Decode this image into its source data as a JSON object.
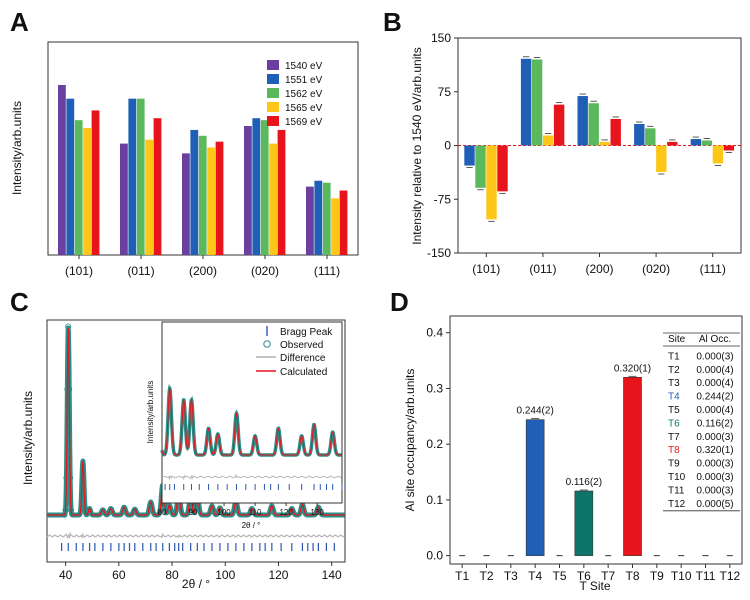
{
  "chart_data": [
    {
      "panel": "A",
      "type": "bar",
      "ylabel": "Intensity/arb.units",
      "categories": [
        "(101)",
        "(011)",
        "(200)",
        "(020)",
        "(111)"
      ],
      "series": [
        {
          "name": "1540 eV",
          "color": "#6b3fa0",
          "values": [
            78,
            48,
            43,
            57,
            26
          ]
        },
        {
          "name": "1551 eV",
          "color": "#1f5fb5",
          "values": [
            71,
            71,
            55,
            61,
            29
          ]
        },
        {
          "name": "1562 eV",
          "color": "#5cb85c",
          "values": [
            60,
            71,
            52,
            60,
            28
          ]
        },
        {
          "name": "1565 eV",
          "color": "#ffc61a",
          "values": [
            56,
            50,
            46,
            48,
            20
          ]
        },
        {
          "name": "1569 eV",
          "color": "#e8141c",
          "values": [
            65,
            61,
            49,
            55,
            24
          ]
        }
      ],
      "ylim": [
        -9,
        100
      ]
    },
    {
      "panel": "B",
      "type": "bar",
      "ylabel": "Intensity relative to 1540 eV/arb.units",
      "categories": [
        "(101)",
        "(011)",
        "(200)",
        "(020)",
        "(111)"
      ],
      "yticks": [
        -150,
        -75,
        0,
        75,
        150
      ],
      "ylim": [
        -150,
        150
      ],
      "series": [
        {
          "name": "1551 eV",
          "color": "#1f5fb5",
          "values": [
            -28,
            121,
            69,
            30,
            9
          ]
        },
        {
          "name": "1562 eV",
          "color": "#5cb85c",
          "values": [
            -59,
            120,
            59,
            24,
            7
          ]
        },
        {
          "name": "1565 eV",
          "color": "#ffc61a",
          "values": [
            -103,
            14,
            5,
            -37,
            -25
          ]
        },
        {
          "name": "1569 eV",
          "color": "#e8141c",
          "values": [
            -64,
            57,
            37,
            5,
            -7
          ]
        }
      ]
    },
    {
      "panel": "C",
      "type": "line",
      "xlabel": "2θ / °",
      "ylabel": "Intensity/arb.units",
      "xticks": [
        40,
        60,
        80,
        100,
        120,
        140
      ],
      "xlim": [
        33,
        145
      ],
      "legend": [
        "Bragg Peak",
        "Observed",
        "Difference",
        "Calculated"
      ],
      "peaks": [
        {
          "x": 41,
          "h": 290
        },
        {
          "x": 46.5,
          "h": 83
        },
        {
          "x": 49,
          "h": 10
        },
        {
          "x": 54,
          "h": 8
        },
        {
          "x": 57,
          "h": 10
        },
        {
          "x": 62,
          "h": 12
        },
        {
          "x": 66,
          "h": 9
        },
        {
          "x": 72,
          "h": 20
        },
        {
          "x": 76.5,
          "h": 46
        },
        {
          "x": 79,
          "h": 15
        },
        {
          "x": 82.5,
          "h": 35
        },
        {
          "x": 87,
          "h": 29
        },
        {
          "x": 89.5,
          "h": 29
        },
        {
          "x": 95,
          "h": 14
        },
        {
          "x": 98,
          "h": 11
        },
        {
          "x": 104,
          "h": 22
        },
        {
          "x": 110,
          "h": 10
        },
        {
          "x": 117.5,
          "h": 14
        },
        {
          "x": 125,
          "h": 10
        },
        {
          "x": 129,
          "h": 16
        },
        {
          "x": 135,
          "h": 12
        }
      ],
      "bragg": [
        38.5,
        41,
        44,
        46.5,
        49,
        51,
        54,
        57,
        60,
        62,
        64,
        66,
        69,
        72,
        74,
        76.5,
        79,
        81,
        82.5,
        84,
        87,
        89.5,
        92,
        95,
        98,
        101,
        104,
        107,
        110,
        113,
        115,
        117.5,
        121,
        125,
        129,
        131,
        133,
        135,
        138,
        141
      ],
      "inset": {
        "xlabel": "2θ / °",
        "ylabel": "Intensity/arb.units",
        "xticks": [
          80,
          90,
          100,
          110,
          120,
          130
        ],
        "xlim": [
          80,
          138
        ]
      }
    },
    {
      "panel": "D",
      "type": "bar",
      "xlabel": "T Site",
      "ylabel": "Al site occupancy/arb.units",
      "categories": [
        "T1",
        "T2",
        "T3",
        "T4",
        "T5",
        "T6",
        "T7",
        "T8",
        "T9",
        "T10",
        "T11",
        "T12"
      ],
      "values": [
        0.0,
        0.0,
        0.0,
        0.244,
        0.0,
        0.116,
        0.0,
        0.32,
        0.0,
        0.0,
        0.0,
        0.0
      ],
      "bar_colors": {
        "T4": "#1f5fb5",
        "T6": "#0e7368",
        "T8": "#e8141c"
      },
      "data_labels": {
        "T4": "0.244(2)",
        "T6": "0.116(2)",
        "T8": "0.320(1)"
      },
      "yticks": [
        0.0,
        0.1,
        0.2,
        0.3,
        0.4
      ],
      "ylim": [
        -0.015,
        0.43
      ],
      "table": {
        "headers": [
          "Site",
          "Al Occ."
        ],
        "rows": [
          [
            "T1",
            "0.000(3)"
          ],
          [
            "T2",
            "0.000(4)"
          ],
          [
            "T3",
            "0.000(4)"
          ],
          [
            "T4",
            "0.244(2)"
          ],
          [
            "T5",
            "0.000(4)"
          ],
          [
            "T6",
            "0.116(2)"
          ],
          [
            "T7",
            "0.000(3)"
          ],
          [
            "T8",
            "0.320(1)"
          ],
          [
            "T9",
            "0.000(3)"
          ],
          [
            "T10",
            "0.000(3)"
          ],
          [
            "T11",
            "0.000(3)"
          ],
          [
            "T12",
            "0.000(5)"
          ]
        ],
        "row_colors": {
          "T4": "#1f5fb5",
          "T6": "#0e7368",
          "T8": "#e8141c"
        }
      }
    }
  ],
  "panels": {
    "a": "A",
    "b": "B",
    "c": "C",
    "d": "D"
  },
  "legend_a": [
    "1540 eV",
    "1551 eV",
    "1562 eV",
    "1565 eV",
    "1569 eV"
  ],
  "labels": {
    "a_ylabel": "Intensity/arb.units",
    "b_ylabel": "Intensity relative to 1540 eV/arb.units",
    "c_ylabel": "Intensity/arb.units",
    "c_xlabel": "2θ / °",
    "c_inset_ylabel": "Intensity/arb.units",
    "c_inset_xlabel": "2θ / °",
    "d_ylabel": "Al site occupancy/arb.units",
    "d_xlabel": "T Site"
  },
  "legend_c": {
    "bragg": "Bragg Peak",
    "observed": "Observed",
    "difference": "Difference",
    "calculated": "Calculated"
  }
}
